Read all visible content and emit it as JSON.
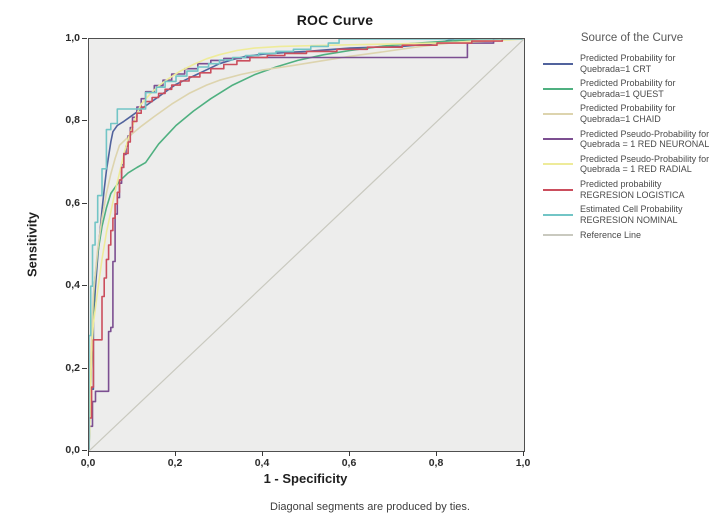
{
  "figure": {
    "footnote": "Diagonal segments are produced by ties.",
    "plot_background": "#ededec",
    "frame_color": "#4f4f4f"
  },
  "chart_data": {
    "type": "line",
    "title": "ROC Curve",
    "xlabel": "1 - Specificity",
    "ylabel": "Sensitivity",
    "xlim": [
      0,
      1
    ],
    "ylim": [
      0,
      1
    ],
    "grid": false,
    "legend_title": "Source of the Curve",
    "legend_position": "right",
    "x_ticks": {
      "values": [
        0,
        0.2,
        0.4,
        0.6,
        0.8,
        1.0
      ],
      "labels": [
        "0,0",
        "0,2",
        "0,4",
        "0,6",
        "0,8",
        "1,0"
      ]
    },
    "y_ticks": {
      "values": [
        0,
        0.2,
        0.4,
        0.6,
        0.8,
        1.0
      ],
      "labels": [
        "0,0",
        "0,2",
        "0,4",
        "0,6",
        "0,8",
        "1,0"
      ]
    },
    "series": [
      {
        "id": "crt",
        "name": "Predicted Probability for Quebrada=1 CRT",
        "color": "#51639d",
        "stepped": false,
        "width": 1.6,
        "points": [
          [
            0,
            0
          ],
          [
            0.003,
            0.15
          ],
          [
            0.01,
            0.15
          ],
          [
            0.01,
            0.32
          ],
          [
            0.015,
            0.4
          ],
          [
            0.02,
            0.47
          ],
          [
            0.025,
            0.53
          ],
          [
            0.03,
            0.585
          ],
          [
            0.035,
            0.635
          ],
          [
            0.04,
            0.68
          ],
          [
            0.045,
            0.715
          ],
          [
            0.05,
            0.75
          ],
          [
            0.055,
            0.775
          ],
          [
            0.065,
            0.79
          ],
          [
            0.08,
            0.8
          ],
          [
            0.1,
            0.815
          ],
          [
            0.12,
            0.83
          ],
          [
            0.14,
            0.845
          ],
          [
            0.16,
            0.86
          ],
          [
            0.18,
            0.875
          ],
          [
            0.2,
            0.89
          ],
          [
            0.22,
            0.9
          ],
          [
            0.25,
            0.915
          ],
          [
            0.28,
            0.93
          ],
          [
            0.3,
            0.94
          ],
          [
            0.33,
            0.95
          ],
          [
            0.36,
            0.958
          ],
          [
            0.4,
            0.963
          ],
          [
            0.45,
            0.967
          ],
          [
            0.5,
            0.97
          ],
          [
            0.55,
            0.974
          ],
          [
            0.6,
            0.978
          ],
          [
            0.66,
            0.98
          ],
          [
            0.72,
            0.982
          ],
          [
            0.78,
            0.988
          ],
          [
            0.8,
            0.99
          ],
          [
            0.84,
            1.0
          ],
          [
            1,
            1
          ]
        ]
      },
      {
        "id": "quest",
        "name": "Predicted Probability for Quebrada=1 QUEST",
        "color": "#4fb080",
        "stepped": false,
        "width": 1.6,
        "points": [
          [
            0,
            0
          ],
          [
            0.004,
            0.16
          ],
          [
            0.008,
            0.3
          ],
          [
            0.012,
            0.4
          ],
          [
            0.02,
            0.48
          ],
          [
            0.03,
            0.545
          ],
          [
            0.04,
            0.59
          ],
          [
            0.05,
            0.625
          ],
          [
            0.07,
            0.655
          ],
          [
            0.09,
            0.675
          ],
          [
            0.11,
            0.688
          ],
          [
            0.13,
            0.7
          ],
          [
            0.16,
            0.745
          ],
          [
            0.2,
            0.79
          ],
          [
            0.24,
            0.825
          ],
          [
            0.28,
            0.855
          ],
          [
            0.33,
            0.888
          ],
          [
            0.38,
            0.913
          ],
          [
            0.43,
            0.932
          ],
          [
            0.48,
            0.948
          ],
          [
            0.54,
            0.962
          ],
          [
            0.6,
            0.972
          ],
          [
            0.67,
            0.982
          ],
          [
            0.74,
            0.989
          ],
          [
            0.81,
            0.994
          ],
          [
            0.88,
            0.998
          ],
          [
            0.93,
            1.0
          ],
          [
            1,
            1
          ]
        ]
      },
      {
        "id": "chaid",
        "name": "Predicted Probability for Quebrada=1 CHAID",
        "color": "#ddd4ae",
        "stepped": false,
        "width": 1.6,
        "points": [
          [
            0,
            0
          ],
          [
            0.004,
            0.22
          ],
          [
            0.01,
            0.38
          ],
          [
            0.02,
            0.49
          ],
          [
            0.03,
            0.565
          ],
          [
            0.04,
            0.625
          ],
          [
            0.05,
            0.672
          ],
          [
            0.06,
            0.71
          ],
          [
            0.07,
            0.742
          ],
          [
            0.09,
            0.762
          ],
          [
            0.12,
            0.788
          ],
          [
            0.15,
            0.812
          ],
          [
            0.19,
            0.842
          ],
          [
            0.23,
            0.868
          ],
          [
            0.27,
            0.888
          ],
          [
            0.3,
            0.9
          ],
          [
            0.35,
            0.914
          ],
          [
            0.4,
            0.925
          ],
          [
            0.47,
            0.936
          ],
          [
            0.53,
            0.946
          ],
          [
            0.6,
            0.958
          ],
          [
            0.67,
            0.968
          ],
          [
            0.75,
            0.98
          ],
          [
            0.83,
            0.99
          ],
          [
            0.9,
            0.997
          ],
          [
            0.94,
            1.0
          ],
          [
            1,
            1
          ]
        ]
      },
      {
        "id": "red-neuronal",
        "name": "Predicted Pseudo-Probability for Quebrada = 1 RED NEURONAL",
        "color": "#7c4f91",
        "stepped": true,
        "width": 1.6,
        "points": [
          [
            0,
            0
          ],
          [
            0.008,
            0.06
          ],
          [
            0.015,
            0.12
          ],
          [
            0.02,
            0.145
          ],
          [
            0.045,
            0.145
          ],
          [
            0.045,
            0.275
          ],
          [
            0.05,
            0.29
          ],
          [
            0.055,
            0.3
          ],
          [
            0.055,
            0.43
          ],
          [
            0.06,
            0.46
          ],
          [
            0.06,
            0.55
          ],
          [
            0.065,
            0.575
          ],
          [
            0.07,
            0.615
          ],
          [
            0.075,
            0.65
          ],
          [
            0.08,
            0.695
          ],
          [
            0.085,
            0.72
          ],
          [
            0.09,
            0.74
          ],
          [
            0.095,
            0.765
          ],
          [
            0.1,
            0.785
          ],
          [
            0.11,
            0.81
          ],
          [
            0.12,
            0.835
          ],
          [
            0.13,
            0.855
          ],
          [
            0.15,
            0.872
          ],
          [
            0.17,
            0.887
          ],
          [
            0.19,
            0.9
          ],
          [
            0.22,
            0.915
          ],
          [
            0.25,
            0.928
          ],
          [
            0.28,
            0.94
          ],
          [
            0.31,
            0.948
          ],
          [
            0.35,
            0.953
          ],
          [
            0.42,
            0.955
          ],
          [
            0.87,
            0.955
          ],
          [
            0.87,
            0.988
          ],
          [
            0.93,
            0.99
          ],
          [
            1,
            1
          ]
        ]
      },
      {
        "id": "red-radial",
        "name": "Predicted Pseudo-Probability for Quebrada = 1 RED RADIAL",
        "color": "#eeeb9a",
        "stepped": false,
        "width": 1.6,
        "points": [
          [
            0,
            0
          ],
          [
            0.003,
            0.12
          ],
          [
            0.006,
            0.24
          ],
          [
            0.01,
            0.31
          ],
          [
            0.02,
            0.39
          ],
          [
            0.03,
            0.465
          ],
          [
            0.04,
            0.53
          ],
          [
            0.05,
            0.58
          ],
          [
            0.06,
            0.63
          ],
          [
            0.07,
            0.675
          ],
          [
            0.08,
            0.72
          ],
          [
            0.09,
            0.757
          ],
          [
            0.1,
            0.788
          ],
          [
            0.11,
            0.818
          ],
          [
            0.12,
            0.842
          ],
          [
            0.14,
            0.866
          ],
          [
            0.16,
            0.886
          ],
          [
            0.18,
            0.902
          ],
          [
            0.21,
            0.922
          ],
          [
            0.24,
            0.938
          ],
          [
            0.27,
            0.952
          ],
          [
            0.3,
            0.962
          ],
          [
            0.34,
            0.972
          ],
          [
            0.38,
            0.978
          ],
          [
            0.44,
            0.982
          ],
          [
            0.52,
            0.984
          ],
          [
            0.6,
            0.986
          ],
          [
            0.7,
            0.988
          ],
          [
            0.8,
            0.99
          ],
          [
            0.9,
            0.994
          ],
          [
            1,
            1
          ]
        ]
      },
      {
        "id": "regresion-logistica",
        "name": "Predicted probability REGRESION LOGISTICA",
        "color": "#cb4e5d",
        "stepped": true,
        "width": 1.6,
        "points": [
          [
            0,
            0
          ],
          [
            0.006,
            0.08
          ],
          [
            0.01,
            0.155
          ],
          [
            0.012,
            0.27
          ],
          [
            0.03,
            0.27
          ],
          [
            0.03,
            0.335
          ],
          [
            0.035,
            0.375
          ],
          [
            0.04,
            0.42
          ],
          [
            0.045,
            0.465
          ],
          [
            0.05,
            0.5
          ],
          [
            0.055,
            0.535
          ],
          [
            0.06,
            0.565
          ],
          [
            0.065,
            0.6
          ],
          [
            0.07,
            0.628
          ],
          [
            0.075,
            0.658
          ],
          [
            0.08,
            0.688
          ],
          [
            0.09,
            0.722
          ],
          [
            0.095,
            0.75
          ],
          [
            0.1,
            0.775
          ],
          [
            0.11,
            0.8
          ],
          [
            0.12,
            0.82
          ],
          [
            0.13,
            0.835
          ],
          [
            0.145,
            0.848
          ],
          [
            0.16,
            0.858
          ],
          [
            0.175,
            0.868
          ],
          [
            0.19,
            0.878
          ],
          [
            0.21,
            0.888
          ],
          [
            0.23,
            0.898
          ],
          [
            0.255,
            0.908
          ],
          [
            0.28,
            0.918
          ],
          [
            0.31,
            0.928
          ],
          [
            0.34,
            0.938
          ],
          [
            0.37,
            0.947
          ],
          [
            0.41,
            0.955
          ],
          [
            0.45,
            0.96
          ],
          [
            0.5,
            0.965
          ],
          [
            0.57,
            0.97
          ],
          [
            0.64,
            0.975
          ],
          [
            0.72,
            0.98
          ],
          [
            0.8,
            0.985
          ],
          [
            0.88,
            0.99
          ],
          [
            0.95,
            0.995
          ],
          [
            1,
            1
          ]
        ]
      },
      {
        "id": "regresion-nominal",
        "name": "Estimated Cell Probability REGRESION NOMINAL",
        "color": "#72c5c6",
        "stepped": true,
        "width": 1.6,
        "points": [
          [
            0,
            0
          ],
          [
            0.004,
            0.28
          ],
          [
            0.008,
            0.4
          ],
          [
            0.014,
            0.5
          ],
          [
            0.02,
            0.555
          ],
          [
            0.03,
            0.62
          ],
          [
            0.04,
            0.685
          ],
          [
            0.05,
            0.78
          ],
          [
            0.065,
            0.795
          ],
          [
            0.065,
            0.83
          ],
          [
            0.13,
            0.83
          ],
          [
            0.13,
            0.857
          ],
          [
            0.155,
            0.87
          ],
          [
            0.175,
            0.883
          ],
          [
            0.2,
            0.897
          ],
          [
            0.225,
            0.91
          ],
          [
            0.25,
            0.922
          ],
          [
            0.275,
            0.932
          ],
          [
            0.3,
            0.94
          ],
          [
            0.33,
            0.949
          ],
          [
            0.36,
            0.955
          ],
          [
            0.39,
            0.96
          ],
          [
            0.43,
            0.965
          ],
          [
            0.47,
            0.97
          ],
          [
            0.51,
            0.975
          ],
          [
            0.55,
            0.982
          ],
          [
            0.575,
            0.99
          ],
          [
            0.595,
            1.0
          ],
          [
            1,
            1
          ]
        ]
      },
      {
        "id": "reference-line",
        "name": "Reference Line",
        "color": "#c9c9bf",
        "stepped": false,
        "width": 1.2,
        "points": [
          [
            0,
            0
          ],
          [
            1,
            1
          ]
        ]
      }
    ]
  }
}
